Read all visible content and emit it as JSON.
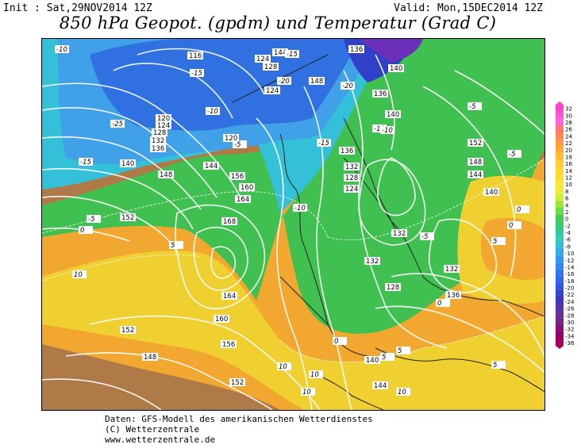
{
  "header": {
    "init": "Init : Sat,29NOV2014 12Z",
    "valid": "Valid: Mon,15DEC2014 12Z",
    "title": "850 hPa Geopot. (gpdm) und Temperatur (Grad C)"
  },
  "footer": {
    "line1": "Daten: GFS-Modell des amerikanischen Wetterdienstes",
    "line2": "(C) Wetterzentrale",
    "line3": "www.wetterzentrale.de"
  },
  "colorscale": {
    "labels": [
      "32",
      "30",
      "28",
      "26",
      "24",
      "22",
      "20",
      "18",
      "16",
      "14",
      "12",
      "10",
      "8",
      "6",
      "4",
      "2",
      "0",
      "-2",
      "-4",
      "-6",
      "-8",
      "-10",
      "-12",
      "-14",
      "-16",
      "-18",
      "-20",
      "-22",
      "-24",
      "-26",
      "-28",
      "-30",
      "-32",
      "-34",
      "-36"
    ],
    "colors": [
      "#ff44cc",
      "#ff55d4",
      "#ff66dd",
      "#ff7777",
      "#ff8855",
      "#ff9944",
      "#ffaa33",
      "#ffbb33",
      "#ffcc33",
      "#ffd633",
      "#ffdd33",
      "#ffe633",
      "#eeee33",
      "#ccee33",
      "#99e633",
      "#66dd44",
      "#44cc55",
      "#33cc77",
      "#33cc99",
      "#33ccbb",
      "#33bbdd",
      "#33aaee",
      "#3399ee",
      "#3388ee",
      "#3377ee",
      "#3366ee",
      "#3355dd",
      "#3344cc",
      "#4433bb",
      "#5533aa",
      "#663399",
      "#772288",
      "#881177",
      "#990066",
      "#aa0055"
    ]
  },
  "map_colors": {
    "brown": "#b07a48",
    "orange": "#f2a830",
    "yellow": "#f0d030",
    "green": "#40c050",
    "cyan": "#33c0d8",
    "lightblue": "#40a0e8",
    "blue": "#3070e0",
    "deepblue": "#3040c8",
    "purple": "#6a30b8"
  },
  "geopotential_labels": [
    "116",
    "128",
    "124",
    "120",
    "124",
    "128",
    "132",
    "136",
    "140",
    "144",
    "148",
    "152",
    "156",
    "160",
    "164",
    "168",
    "164",
    "160",
    "156",
    "152",
    "148",
    "152",
    "144",
    "136",
    "140",
    "148",
    "136",
    "132",
    "128",
    "124",
    "132",
    "132",
    "128",
    "132",
    "136",
    "140",
    "144",
    "148",
    "152",
    "144",
    "140",
    "136",
    "140",
    "124",
    "120"
  ],
  "temperature_labels": [
    "-10",
    "-15",
    "-20",
    "-15",
    "-10",
    "-5",
    "0",
    "5",
    "10",
    "-25",
    "-20",
    "-15",
    "-10",
    "-5",
    "0",
    "5",
    "10",
    "-15",
    "-10",
    "-5",
    "0",
    "5",
    "10",
    "5",
    "0",
    "-5",
    "-10",
    "-5",
    "0",
    "5",
    "10",
    "10"
  ]
}
